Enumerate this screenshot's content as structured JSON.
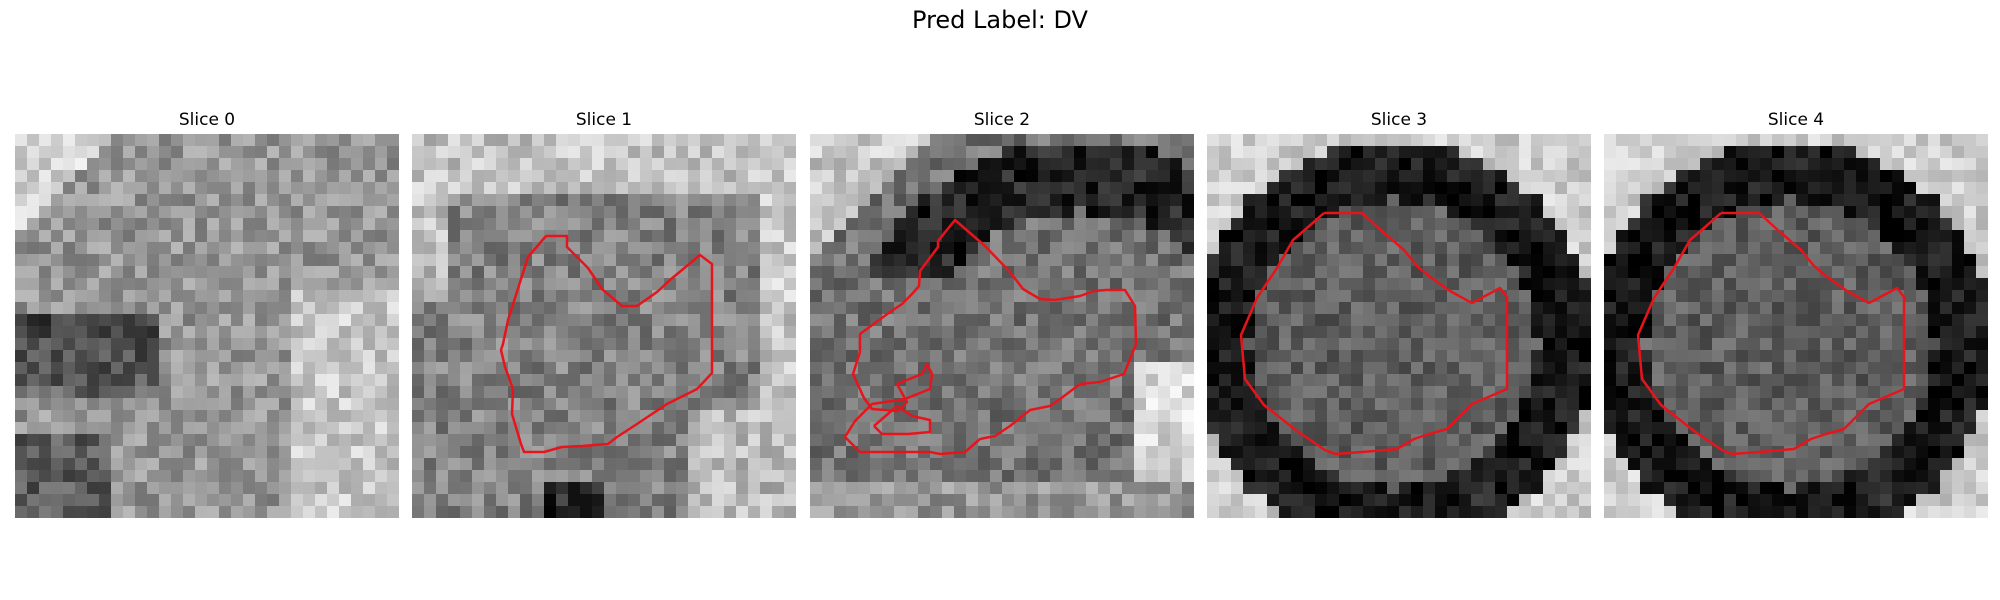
{
  "figure": {
    "title": "Pred Label: DV"
  },
  "panels": [
    {
      "title": "Slice 0",
      "has_contour": false
    },
    {
      "title": "Slice 1",
      "has_contour": true
    },
    {
      "title": "Slice 2",
      "has_contour": true
    },
    {
      "title": "Slice 3",
      "has_contour": true
    },
    {
      "title": "Slice 4",
      "has_contour": true
    }
  ],
  "colors": {
    "contour": "#e8141b",
    "background": "#ffffff"
  }
}
